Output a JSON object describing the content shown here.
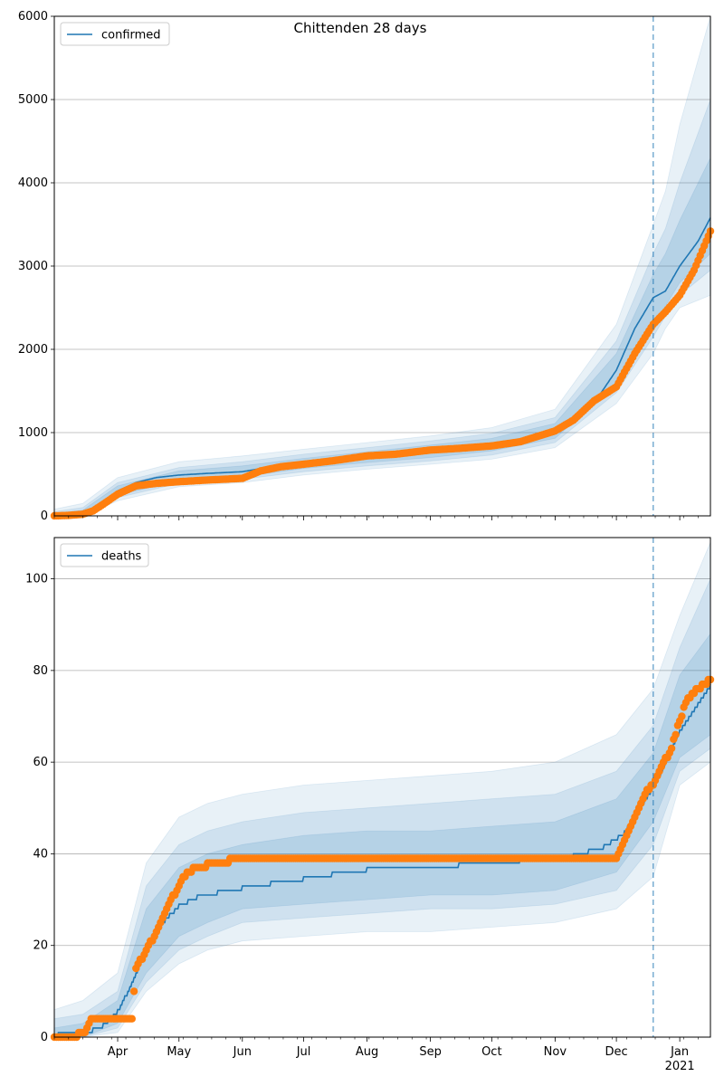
{
  "chart_data": [
    {
      "type": "line",
      "title": "Chittenden 28 days",
      "legend": {
        "entries": [
          "confirmed"
        ],
        "placement": "top-left"
      },
      "ylim": [
        0,
        6000
      ],
      "yticks": [
        0,
        1000,
        2000,
        3000,
        4000,
        5000,
        6000
      ],
      "grid": "y",
      "xlim": [
        "2020-03-01",
        "2021-01-16"
      ],
      "forecast_start": "2020-12-19",
      "series": [
        {
          "name": "confirmed",
          "role": "model",
          "color": "#1f77b4",
          "points": [
            [
              "2020-03-01",
              0
            ],
            [
              "2020-03-15",
              30
            ],
            [
              "2020-03-25",
              150
            ],
            [
              "2020-04-01",
              300
            ],
            [
              "2020-04-10",
              400
            ],
            [
              "2020-04-20",
              460
            ],
            [
              "2020-05-01",
              490
            ],
            [
              "2020-05-15",
              510
            ],
            [
              "2020-06-01",
              530
            ],
            [
              "2020-06-15",
              590
            ],
            [
              "2020-07-01",
              630
            ],
            [
              "2020-08-01",
              710
            ],
            [
              "2020-09-01",
              780
            ],
            [
              "2020-10-01",
              850
            ],
            [
              "2020-10-20",
              920
            ],
            [
              "2020-11-01",
              1020
            ],
            [
              "2020-11-10",
              1150
            ],
            [
              "2020-11-20",
              1350
            ],
            [
              "2020-12-01",
              1750
            ],
            [
              "2020-12-10",
              2250
            ],
            [
              "2020-12-19",
              2620
            ],
            [
              "2020-12-25",
              2700
            ],
            [
              "2021-01-01",
              3000
            ],
            [
              "2021-01-10",
              3300
            ],
            [
              "2021-01-16",
              3580
            ]
          ]
        },
        {
          "name": "",
          "role": "observed",
          "color": "#ff7f0e",
          "points": [
            [
              "2020-03-01",
              0
            ],
            [
              "2020-03-08",
              5
            ],
            [
              "2020-03-15",
              20
            ],
            [
              "2020-03-20",
              60
            ],
            [
              "2020-03-25",
              140
            ],
            [
              "2020-04-01",
              260
            ],
            [
              "2020-04-10",
              360
            ],
            [
              "2020-04-20",
              390
            ],
            [
              "2020-05-01",
              410
            ],
            [
              "2020-05-15",
              430
            ],
            [
              "2020-06-01",
              450
            ],
            [
              "2020-06-10",
              540
            ],
            [
              "2020-06-20",
              590
            ],
            [
              "2020-07-01",
              620
            ],
            [
              "2020-07-15",
              660
            ],
            [
              "2020-08-01",
              720
            ],
            [
              "2020-08-15",
              740
            ],
            [
              "2020-09-01",
              790
            ],
            [
              "2020-09-15",
              810
            ],
            [
              "2020-10-01",
              840
            ],
            [
              "2020-10-15",
              890
            ],
            [
              "2020-11-01",
              1020
            ],
            [
              "2020-11-10",
              1150
            ],
            [
              "2020-11-20",
              1380
            ],
            [
              "2020-12-01",
              1550
            ],
            [
              "2020-12-10",
              1950
            ],
            [
              "2020-12-19",
              2300
            ],
            [
              "2020-12-25",
              2450
            ],
            [
              "2021-01-01",
              2650
            ],
            [
              "2021-01-08",
              2950
            ],
            [
              "2021-01-16",
              3420
            ]
          ]
        }
      ],
      "bands": [
        {
          "opacity": 0.1,
          "points": [
            [
              "2020-03-01",
              0,
              80
            ],
            [
              "2020-03-15",
              0,
              150
            ],
            [
              "2020-04-01",
              180,
              460
            ],
            [
              "2020-05-01",
              350,
              650
            ],
            [
              "2020-06-01",
              400,
              720
            ],
            [
              "2020-07-01",
              490,
              800
            ],
            [
              "2020-08-01",
              560,
              880
            ],
            [
              "2020-09-01",
              620,
              960
            ],
            [
              "2020-10-01",
              680,
              1060
            ],
            [
              "2020-11-01",
              820,
              1280
            ],
            [
              "2020-12-01",
              1350,
              2300
            ],
            [
              "2020-12-19",
              1950,
              3500
            ],
            [
              "2020-12-25",
              2250,
              3900
            ],
            [
              "2021-01-01",
              2500,
              4700
            ],
            [
              "2021-01-16",
              2650,
              6000
            ]
          ]
        },
        {
          "opacity": 0.12,
          "points": [
            [
              "2020-03-01",
              0,
              50
            ],
            [
              "2020-03-15",
              10,
              100
            ],
            [
              "2020-04-01",
              220,
              400
            ],
            [
              "2020-05-01",
              390,
              580
            ],
            [
              "2020-06-01",
              440,
              650
            ],
            [
              "2020-07-01",
              530,
              740
            ],
            [
              "2020-08-01",
              600,
              820
            ],
            [
              "2020-09-01",
              660,
              900
            ],
            [
              "2020-10-01",
              730,
              990
            ],
            [
              "2020-11-01",
              880,
              1180
            ],
            [
              "2020-12-01",
              1480,
              2100
            ],
            [
              "2020-12-19",
              2150,
              3150
            ],
            [
              "2020-12-25",
              2400,
              3450
            ],
            [
              "2021-01-01",
              2650,
              4000
            ],
            [
              "2021-01-16",
              2950,
              5000
            ]
          ]
        },
        {
          "opacity": 0.14,
          "points": [
            [
              "2020-03-01",
              0,
              30
            ],
            [
              "2020-03-15",
              15,
              70
            ],
            [
              "2020-04-01",
              250,
              360
            ],
            [
              "2020-05-01",
              420,
              540
            ],
            [
              "2020-06-01",
              470,
              600
            ],
            [
              "2020-07-01",
              570,
              690
            ],
            [
              "2020-08-01",
              640,
              770
            ],
            [
              "2020-09-01",
              700,
              850
            ],
            [
              "2020-10-01",
              780,
              930
            ],
            [
              "2020-11-01",
              930,
              1110
            ],
            [
              "2020-12-01",
              1580,
              1950
            ],
            [
              "2020-12-19",
              2300,
              2900
            ],
            [
              "2020-12-25",
              2520,
              3150
            ],
            [
              "2021-01-01",
              2800,
              3550
            ],
            [
              "2021-01-16",
              3150,
              4300
            ]
          ]
        }
      ]
    },
    {
      "type": "line",
      "title": "",
      "legend": {
        "entries": [
          "deaths"
        ],
        "placement": "top-left"
      },
      "ylim": [
        0,
        109
      ],
      "yticks": [
        0,
        20,
        40,
        60,
        80,
        100
      ],
      "grid": "y",
      "xlim": [
        "2020-03-01",
        "2021-01-16"
      ],
      "xticks": [
        {
          "date": "2020-04-01",
          "label": "Apr"
        },
        {
          "date": "2020-05-01",
          "label": "May"
        },
        {
          "date": "2020-06-01",
          "label": "Jun"
        },
        {
          "date": "2020-07-01",
          "label": "Jul"
        },
        {
          "date": "2020-08-01",
          "label": "Aug"
        },
        {
          "date": "2020-09-01",
          "label": "Sep"
        },
        {
          "date": "2020-10-01",
          "label": "Oct"
        },
        {
          "date": "2020-11-01",
          "label": "Nov"
        },
        {
          "date": "2020-12-01",
          "label": "Dec"
        },
        {
          "date": "2021-01-01",
          "label": "Jan"
        }
      ],
      "xtick_year_label": "2021",
      "forecast_start": "2020-12-19",
      "series": [
        {
          "name": "deaths",
          "role": "model",
          "color": "#1f77b4",
          "points": [
            [
              "2020-03-01",
              0
            ],
            [
              "2020-03-03",
              1
            ],
            [
              "2020-03-15",
              1
            ],
            [
              "2020-03-20",
              2
            ],
            [
              "2020-03-25",
              3
            ],
            [
              "2020-04-01",
              6
            ],
            [
              "2020-04-08",
              12
            ],
            [
              "2020-04-15",
              20
            ],
            [
              "2020-04-22",
              25
            ],
            [
              "2020-05-01",
              29
            ],
            [
              "2020-05-10",
              31
            ],
            [
              "2020-05-20",
              32
            ],
            [
              "2020-06-01",
              33
            ],
            [
              "2020-06-15",
              34
            ],
            [
              "2020-07-01",
              35
            ],
            [
              "2020-07-15",
              36
            ],
            [
              "2020-08-01",
              37
            ],
            [
              "2020-08-31",
              37
            ],
            [
              "2020-09-15",
              38
            ],
            [
              "2020-10-15",
              39
            ],
            [
              "2020-11-10",
              40
            ],
            [
              "2020-11-25",
              42
            ],
            [
              "2020-12-05",
              45
            ],
            [
              "2020-12-12",
              50
            ],
            [
              "2020-12-19",
              55
            ],
            [
              "2020-12-25",
              60
            ],
            [
              "2021-01-01",
              67
            ],
            [
              "2021-01-10",
              73
            ],
            [
              "2021-01-16",
              77
            ]
          ]
        },
        {
          "name": "",
          "role": "observed",
          "color": "#ff7f0e",
          "points": [
            [
              "2020-03-01",
              0
            ],
            [
              "2020-03-10",
              0
            ],
            [
              "2020-03-16",
              1
            ],
            [
              "2020-03-19",
              4
            ],
            [
              "2020-04-08",
              4
            ],
            [
              "2020-04-10",
              15
            ],
            [
              "2020-04-15",
              19
            ],
            [
              "2020-04-20",
              23
            ],
            [
              "2020-04-25",
              28
            ],
            [
              "2020-05-01",
              33
            ],
            [
              "2020-05-05",
              36
            ],
            [
              "2020-05-10",
              37
            ],
            [
              "2020-05-20",
              38
            ],
            [
              "2020-06-01",
              39
            ],
            [
              "2020-12-01",
              39
            ],
            [
              "2020-12-05",
              43
            ],
            [
              "2020-12-10",
              48
            ],
            [
              "2020-12-15",
              53
            ],
            [
              "2020-12-19",
              55
            ],
            [
              "2020-12-23",
              59
            ],
            [
              "2020-12-28",
              63
            ],
            [
              "2021-01-01",
              69
            ],
            [
              "2021-01-05",
              74
            ],
            [
              "2021-01-10",
              76
            ],
            [
              "2021-01-16",
              78
            ]
          ]
        }
      ],
      "bands": [
        {
          "opacity": 0.1,
          "points": [
            [
              "2020-03-01",
              0,
              6
            ],
            [
              "2020-03-15",
              0,
              8
            ],
            [
              "2020-04-01",
              1,
              14
            ],
            [
              "2020-04-15",
              10,
              38
            ],
            [
              "2020-05-01",
              16,
              48
            ],
            [
              "2020-05-15",
              19,
              51
            ],
            [
              "2020-06-01",
              21,
              53
            ],
            [
              "2020-07-01",
              22,
              55
            ],
            [
              "2020-08-01",
              23,
              56
            ],
            [
              "2020-09-01",
              23,
              57
            ],
            [
              "2020-10-01",
              24,
              58
            ],
            [
              "2020-11-01",
              25,
              60
            ],
            [
              "2020-12-01",
              28,
              66
            ],
            [
              "2020-12-19",
              35,
              76
            ],
            [
              "2021-01-01",
              55,
              92
            ],
            [
              "2021-01-16",
              60,
              108
            ]
          ]
        },
        {
          "opacity": 0.12,
          "points": [
            [
              "2020-03-01",
              0,
              4
            ],
            [
              "2020-03-15",
              0,
              5
            ],
            [
              "2020-04-01",
              2,
              10
            ],
            [
              "2020-04-15",
              12,
              33
            ],
            [
              "2020-05-01",
              19,
              42
            ],
            [
              "2020-05-15",
              22,
              45
            ],
            [
              "2020-06-01",
              25,
              47
            ],
            [
              "2020-07-01",
              26,
              49
            ],
            [
              "2020-08-01",
              27,
              50
            ],
            [
              "2020-09-01",
              28,
              51
            ],
            [
              "2020-10-01",
              28,
              52
            ],
            [
              "2020-11-01",
              29,
              53
            ],
            [
              "2020-12-01",
              32,
              58
            ],
            [
              "2020-12-19",
              42,
              68
            ],
            [
              "2021-01-01",
              58,
              85
            ],
            [
              "2021-01-16",
              63,
              100
            ]
          ]
        },
        {
          "opacity": 0.14,
          "points": [
            [
              "2020-03-01",
              0,
              2
            ],
            [
              "2020-03-15",
              0,
              3
            ],
            [
              "2020-04-01",
              3,
              8
            ],
            [
              "2020-04-15",
              14,
              28
            ],
            [
              "2020-05-01",
              22,
              37
            ],
            [
              "2020-05-15",
              25,
              40
            ],
            [
              "2020-06-01",
              28,
              42
            ],
            [
              "2020-07-01",
              29,
              44
            ],
            [
              "2020-08-01",
              30,
              45
            ],
            [
              "2020-09-01",
              31,
              45
            ],
            [
              "2020-10-01",
              31,
              46
            ],
            [
              "2020-11-01",
              32,
              47
            ],
            [
              "2020-12-01",
              36,
              52
            ],
            [
              "2020-12-19",
              47,
              62
            ],
            [
              "2021-01-01",
              61,
              79
            ],
            [
              "2021-01-16",
              66,
              88
            ]
          ]
        }
      ]
    }
  ]
}
